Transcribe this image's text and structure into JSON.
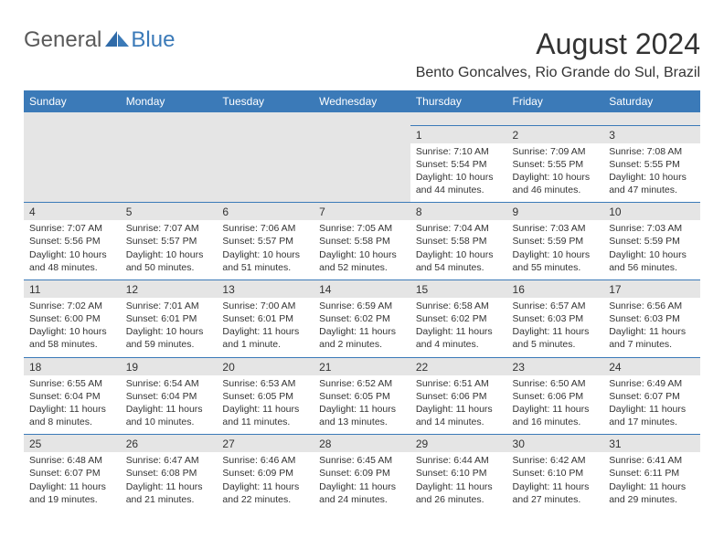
{
  "brand": {
    "general": "General",
    "blue": "Blue"
  },
  "title": "August 2024",
  "location": "Bento Goncalves, Rio Grande do Sul, Brazil",
  "colors": {
    "header_bg": "#3b7ab8",
    "header_text": "#ffffff",
    "num_bg": "#e5e5e5",
    "text": "#333333",
    "logo_gray": "#5a5a5a",
    "logo_blue": "#3b7ab8",
    "background": "#ffffff"
  },
  "days": [
    "Sunday",
    "Monday",
    "Tuesday",
    "Wednesday",
    "Thursday",
    "Friday",
    "Saturday"
  ],
  "weeks": [
    [
      {
        "n": "",
        "sr": "",
        "ss": "",
        "dl": ""
      },
      {
        "n": "",
        "sr": "",
        "ss": "",
        "dl": ""
      },
      {
        "n": "",
        "sr": "",
        "ss": "",
        "dl": ""
      },
      {
        "n": "",
        "sr": "",
        "ss": "",
        "dl": ""
      },
      {
        "n": "1",
        "sr": "Sunrise: 7:10 AM",
        "ss": "Sunset: 5:54 PM",
        "dl": "Daylight: 10 hours and 44 minutes."
      },
      {
        "n": "2",
        "sr": "Sunrise: 7:09 AM",
        "ss": "Sunset: 5:55 PM",
        "dl": "Daylight: 10 hours and 46 minutes."
      },
      {
        "n": "3",
        "sr": "Sunrise: 7:08 AM",
        "ss": "Sunset: 5:55 PM",
        "dl": "Daylight: 10 hours and 47 minutes."
      }
    ],
    [
      {
        "n": "4",
        "sr": "Sunrise: 7:07 AM",
        "ss": "Sunset: 5:56 PM",
        "dl": "Daylight: 10 hours and 48 minutes."
      },
      {
        "n": "5",
        "sr": "Sunrise: 7:07 AM",
        "ss": "Sunset: 5:57 PM",
        "dl": "Daylight: 10 hours and 50 minutes."
      },
      {
        "n": "6",
        "sr": "Sunrise: 7:06 AM",
        "ss": "Sunset: 5:57 PM",
        "dl": "Daylight: 10 hours and 51 minutes."
      },
      {
        "n": "7",
        "sr": "Sunrise: 7:05 AM",
        "ss": "Sunset: 5:58 PM",
        "dl": "Daylight: 10 hours and 52 minutes."
      },
      {
        "n": "8",
        "sr": "Sunrise: 7:04 AM",
        "ss": "Sunset: 5:58 PM",
        "dl": "Daylight: 10 hours and 54 minutes."
      },
      {
        "n": "9",
        "sr": "Sunrise: 7:03 AM",
        "ss": "Sunset: 5:59 PM",
        "dl": "Daylight: 10 hours and 55 minutes."
      },
      {
        "n": "10",
        "sr": "Sunrise: 7:03 AM",
        "ss": "Sunset: 5:59 PM",
        "dl": "Daylight: 10 hours and 56 minutes."
      }
    ],
    [
      {
        "n": "11",
        "sr": "Sunrise: 7:02 AM",
        "ss": "Sunset: 6:00 PM",
        "dl": "Daylight: 10 hours and 58 minutes."
      },
      {
        "n": "12",
        "sr": "Sunrise: 7:01 AM",
        "ss": "Sunset: 6:01 PM",
        "dl": "Daylight: 10 hours and 59 minutes."
      },
      {
        "n": "13",
        "sr": "Sunrise: 7:00 AM",
        "ss": "Sunset: 6:01 PM",
        "dl": "Daylight: 11 hours and 1 minute."
      },
      {
        "n": "14",
        "sr": "Sunrise: 6:59 AM",
        "ss": "Sunset: 6:02 PM",
        "dl": "Daylight: 11 hours and 2 minutes."
      },
      {
        "n": "15",
        "sr": "Sunrise: 6:58 AM",
        "ss": "Sunset: 6:02 PM",
        "dl": "Daylight: 11 hours and 4 minutes."
      },
      {
        "n": "16",
        "sr": "Sunrise: 6:57 AM",
        "ss": "Sunset: 6:03 PM",
        "dl": "Daylight: 11 hours and 5 minutes."
      },
      {
        "n": "17",
        "sr": "Sunrise: 6:56 AM",
        "ss": "Sunset: 6:03 PM",
        "dl": "Daylight: 11 hours and 7 minutes."
      }
    ],
    [
      {
        "n": "18",
        "sr": "Sunrise: 6:55 AM",
        "ss": "Sunset: 6:04 PM",
        "dl": "Daylight: 11 hours and 8 minutes."
      },
      {
        "n": "19",
        "sr": "Sunrise: 6:54 AM",
        "ss": "Sunset: 6:04 PM",
        "dl": "Daylight: 11 hours and 10 minutes."
      },
      {
        "n": "20",
        "sr": "Sunrise: 6:53 AM",
        "ss": "Sunset: 6:05 PM",
        "dl": "Daylight: 11 hours and 11 minutes."
      },
      {
        "n": "21",
        "sr": "Sunrise: 6:52 AM",
        "ss": "Sunset: 6:05 PM",
        "dl": "Daylight: 11 hours and 13 minutes."
      },
      {
        "n": "22",
        "sr": "Sunrise: 6:51 AM",
        "ss": "Sunset: 6:06 PM",
        "dl": "Daylight: 11 hours and 14 minutes."
      },
      {
        "n": "23",
        "sr": "Sunrise: 6:50 AM",
        "ss": "Sunset: 6:06 PM",
        "dl": "Daylight: 11 hours and 16 minutes."
      },
      {
        "n": "24",
        "sr": "Sunrise: 6:49 AM",
        "ss": "Sunset: 6:07 PM",
        "dl": "Daylight: 11 hours and 17 minutes."
      }
    ],
    [
      {
        "n": "25",
        "sr": "Sunrise: 6:48 AM",
        "ss": "Sunset: 6:07 PM",
        "dl": "Daylight: 11 hours and 19 minutes."
      },
      {
        "n": "26",
        "sr": "Sunrise: 6:47 AM",
        "ss": "Sunset: 6:08 PM",
        "dl": "Daylight: 11 hours and 21 minutes."
      },
      {
        "n": "27",
        "sr": "Sunrise: 6:46 AM",
        "ss": "Sunset: 6:09 PM",
        "dl": "Daylight: 11 hours and 22 minutes."
      },
      {
        "n": "28",
        "sr": "Sunrise: 6:45 AM",
        "ss": "Sunset: 6:09 PM",
        "dl": "Daylight: 11 hours and 24 minutes."
      },
      {
        "n": "29",
        "sr": "Sunrise: 6:44 AM",
        "ss": "Sunset: 6:10 PM",
        "dl": "Daylight: 11 hours and 26 minutes."
      },
      {
        "n": "30",
        "sr": "Sunrise: 6:42 AM",
        "ss": "Sunset: 6:10 PM",
        "dl": "Daylight: 11 hours and 27 minutes."
      },
      {
        "n": "31",
        "sr": "Sunrise: 6:41 AM",
        "ss": "Sunset: 6:11 PM",
        "dl": "Daylight: 11 hours and 29 minutes."
      }
    ]
  ]
}
